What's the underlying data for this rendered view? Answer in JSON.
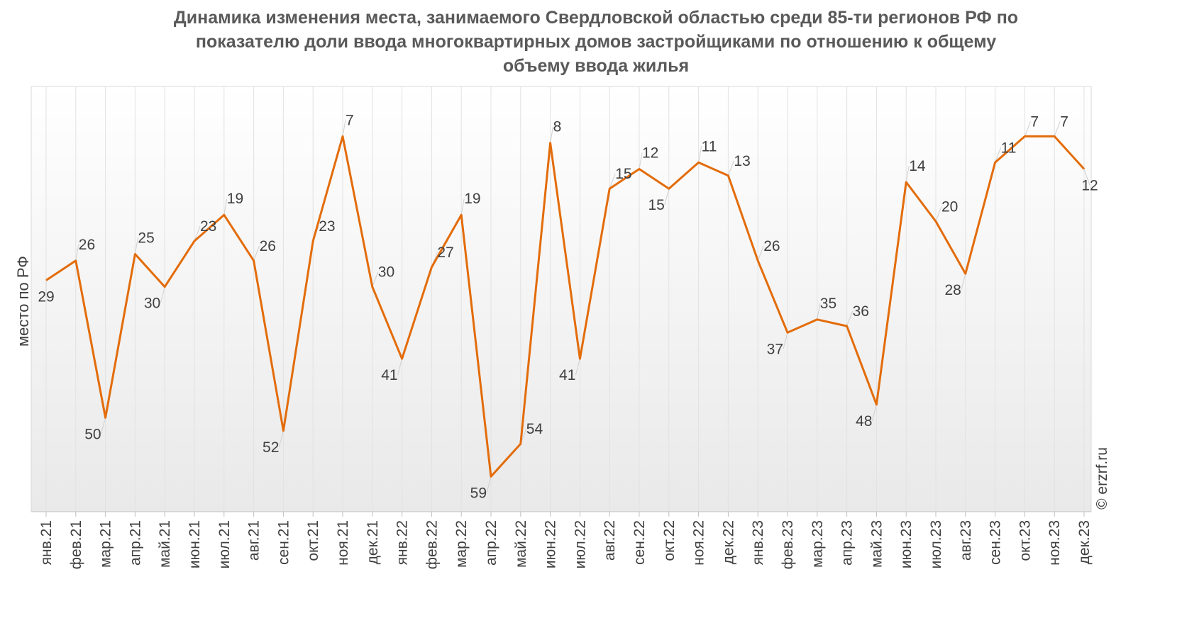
{
  "chart_data": {
    "type": "line",
    "title_lines": [
      "Динамика изменения места, занимаемого Свердловской областью среди 85-ти регионов РФ по",
      "показателю доли ввода многоквартирных домов застройщиками по отношению к общему",
      "объему ввода жилья"
    ],
    "ylabel": "место по РФ",
    "y_axis_inverted": true,
    "ylim": [
      1,
      66
    ],
    "grid": "vertical",
    "categories": [
      "янв.21",
      "фев.21",
      "мар.21",
      "апр.21",
      "май.21",
      "июн.21",
      "июл.21",
      "авг.21",
      "сен.21",
      "окт.21",
      "ноя.21",
      "дек.21",
      "янв.22",
      "фев.22",
      "мар.22",
      "апр.22",
      "май.22",
      "июн.22",
      "июл.22",
      "авг.22",
      "сен.22",
      "окт.22",
      "ноя.22",
      "дек.22",
      "янв.23",
      "фев.23",
      "мар.23",
      "апр.23",
      "май.23",
      "июн.23",
      "июл.23",
      "авг.23",
      "сен.23",
      "окт.23",
      "ноя.23",
      "дек.23"
    ],
    "series": [
      {
        "color": "#E36C0A",
        "values": [
          29,
          26,
          50,
          25,
          30,
          23,
          19,
          26,
          52,
          23,
          7,
          30,
          41,
          27,
          19,
          59,
          54,
          8,
          41,
          15,
          12,
          15,
          11,
          13,
          26,
          37,
          35,
          36,
          48,
          14,
          20,
          28,
          11,
          7,
          7,
          12
        ]
      }
    ],
    "watermark": "© erzrf.ru"
  }
}
